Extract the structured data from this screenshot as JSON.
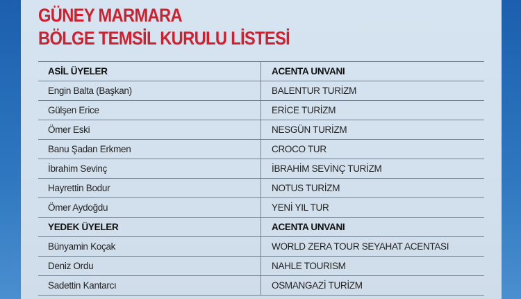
{
  "title": {
    "line1": "GÜNEY MARMARA",
    "line2": "BÖLGE TEMSİL KURULU LİSTESİ"
  },
  "rows": [
    {
      "name": "ASİL ÜYELER",
      "agency": "ACENTA UNVANI",
      "header": true
    },
    {
      "name": "Engin Balta (Başkan)",
      "agency": "BALENTUR TURİZM"
    },
    {
      "name": "Gülşen Erice",
      "agency": "ERİCE TURİZM"
    },
    {
      "name": "Ömer Eski",
      "agency": "NESGÜN TURİZM"
    },
    {
      "name": "Banu Şadan Erkmen",
      "agency": "CROCO TUR"
    },
    {
      "name": "İbrahim Sevinç",
      "agency": "İBRAHİM SEVİNÇ TURİZM"
    },
    {
      "name": "Hayrettin Bodur",
      "agency": "NOTUS TURİZM"
    },
    {
      "name": "Ömer Aydoğdu",
      "agency": "YENİ YIL TUR"
    },
    {
      "name": "YEDEK ÜYELER",
      "agency": "ACENTA UNVANI",
      "header": true
    },
    {
      "name": "Bünyamin Koçak",
      "agency": "WORLD ZERA TOUR SEYAHAT ACENTASI"
    },
    {
      "name": "Deniz Ordu",
      "agency": "NAHLE TOURISM"
    },
    {
      "name": "Sadettin Kantarcı",
      "agency": "OSMANGAZİ TURİZM"
    }
  ]
}
